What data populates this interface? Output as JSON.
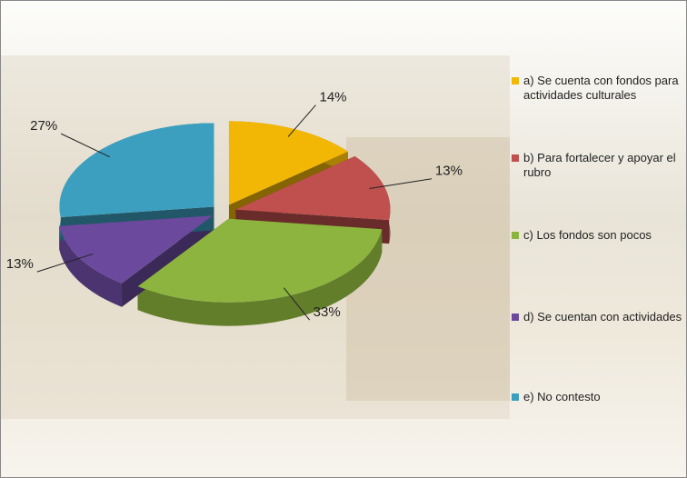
{
  "chart_data": {
    "type": "pie",
    "categories": [
      "a) Se cuenta con fondos para actividades culturales",
      "b) Para fortalecer y apoyar el rubro",
      "c) Los fondos son pocos",
      "d) Se cuentan con actividades",
      "e) No contesto"
    ],
    "values": [
      14,
      13,
      33,
      13,
      27
    ],
    "value_labels": [
      "14%",
      "13%",
      "33%",
      "13%",
      "27%"
    ],
    "colors": [
      "#f2b705",
      "#c0504d",
      "#8db43e",
      "#6b4a9e",
      "#3d9fbf"
    ]
  }
}
